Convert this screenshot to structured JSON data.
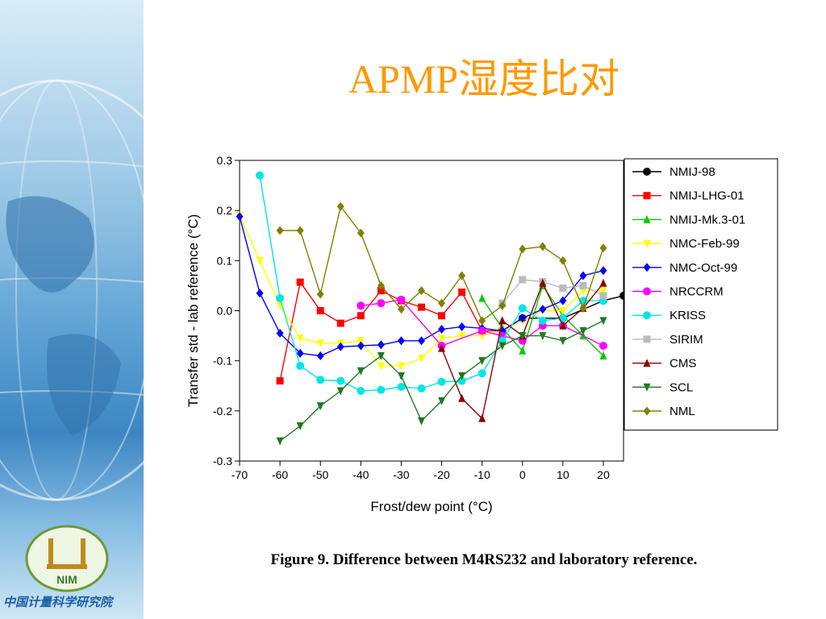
{
  "slide": {
    "title": "APMP湿度比对",
    "caption": "Figure 9. Difference between M4RS232 and laboratory reference.",
    "logo_text": "NIM",
    "institute": "中国计量科学研究院"
  },
  "chart_data": {
    "type": "line",
    "xlabel": "Frost/dew point (°C)",
    "ylabel": "Transfer std - lab reference (°C)",
    "xlim": [
      -70,
      25
    ],
    "ylim": [
      -0.3,
      0.3
    ],
    "xticks": [
      -70,
      -60,
      -50,
      -40,
      -30,
      -20,
      -10,
      0,
      10,
      20
    ],
    "yticks": [
      -0.3,
      -0.2,
      -0.1,
      0.0,
      0.1,
      0.2,
      0.3
    ],
    "xtick_labels": [
      "-70",
      "-60",
      "-50",
      "-40",
      "-30",
      "-20",
      "-10",
      "0",
      "10",
      "20"
    ],
    "ytick_labels": [
      "-0.3",
      "-0.2",
      "-0.1",
      "0.0",
      "0.1",
      "0.2",
      "0.3"
    ],
    "legend_position": "right",
    "grid": false,
    "series": [
      {
        "name": "NMIJ-98",
        "color": "#000000",
        "marker": "circle",
        "x": [
          -5,
          0,
          10,
          20,
          25
        ],
        "y": [
          -0.04,
          -0.015,
          -0.015,
          0.02,
          0.03
        ]
      },
      {
        "name": "NMIJ-LHG-01",
        "color": "#ff0000",
        "marker": "square",
        "x": [
          -60,
          -55,
          -50,
          -45,
          -40,
          -35,
          -30,
          -25,
          -20,
          -15,
          -10,
          -5
        ],
        "y": [
          -0.14,
          0.057,
          0.0,
          -0.025,
          -0.01,
          0.04,
          0.02,
          0.007,
          -0.01,
          0.037,
          -0.04,
          -0.04
        ]
      },
      {
        "name": "NMIJ-Mk.3-01",
        "color": "#00cc00",
        "marker": "triangle-up",
        "x": [
          -10,
          -5,
          0,
          5,
          10,
          15,
          20
        ],
        "y": [
          0.025,
          -0.035,
          -0.08,
          0.05,
          -0.01,
          -0.05,
          -0.09
        ]
      },
      {
        "name": "NMC-Feb-99",
        "color": "#ffff00",
        "marker": "triangle-down",
        "x": [
          -70,
          -65,
          -60,
          -55,
          -50,
          -45,
          -40,
          -35,
          -30,
          -25,
          -20,
          -15,
          -10,
          -5,
          0,
          5,
          10,
          15,
          20
        ],
        "y": [
          0.19,
          0.1,
          0.01,
          -0.055,
          -0.065,
          -0.065,
          -0.06,
          -0.11,
          -0.11,
          -0.095,
          -0.055,
          -0.05,
          -0.05,
          -0.04,
          -0.02,
          0.0,
          0.0,
          0.04,
          0.04
        ]
      },
      {
        "name": "NMC-Oct-99",
        "color": "#0000ff",
        "marker": "diamond",
        "x": [
          -70,
          -65,
          -60,
          -55,
          -50,
          -45,
          -40,
          -35,
          -30,
          -25,
          -20,
          -15,
          -10,
          -5,
          0,
          5,
          10,
          15,
          20
        ],
        "y": [
          0.188,
          0.035,
          -0.045,
          -0.085,
          -0.09,
          -0.072,
          -0.07,
          -0.068,
          -0.06,
          -0.06,
          -0.037,
          -0.032,
          -0.035,
          -0.04,
          -0.015,
          0.003,
          0.02,
          0.07,
          0.08
        ]
      },
      {
        "name": "NRCCRM",
        "color": "#ff00ff",
        "marker": "circle",
        "x": [
          -40,
          -35,
          -30,
          -20,
          -10,
          -5,
          0,
          5,
          10,
          20
        ],
        "y": [
          0.01,
          0.015,
          0.022,
          -0.07,
          -0.04,
          -0.05,
          -0.06,
          -0.03,
          -0.03,
          -0.07
        ]
      },
      {
        "name": "KRISS",
        "color": "#00e5e5",
        "marker": "circle",
        "x": [
          -65,
          -60,
          -55,
          -50,
          -45,
          -40,
          -35,
          -30,
          -25,
          -20,
          -15,
          -10,
          -5,
          0,
          5,
          10,
          15,
          20
        ],
        "y": [
          0.27,
          0.025,
          -0.11,
          -0.138,
          -0.14,
          -0.16,
          -0.158,
          -0.152,
          -0.155,
          -0.142,
          -0.14,
          -0.125,
          -0.06,
          0.005,
          -0.02,
          -0.015,
          0.02,
          0.02
        ]
      },
      {
        "name": "SIRIM",
        "color": "#bbbbbb",
        "marker": "square",
        "x": [
          -5,
          0,
          5,
          10,
          15,
          20
        ],
        "y": [
          0.015,
          0.062,
          0.058,
          0.045,
          0.05,
          0.03
        ]
      },
      {
        "name": "CMS",
        "color": "#8b0000",
        "marker": "triangle-up",
        "x": [
          -20,
          -15,
          -10,
          -5,
          0,
          5,
          10,
          15,
          20
        ],
        "y": [
          -0.075,
          -0.175,
          -0.215,
          -0.02,
          -0.05,
          0.055,
          -0.03,
          0.005,
          0.055
        ]
      },
      {
        "name": "SCL",
        "color": "#1e7a1e",
        "marker": "triangle-down",
        "x": [
          -60,
          -55,
          -50,
          -45,
          -40,
          -35,
          -30,
          -25,
          -20,
          -15,
          -10,
          -5,
          0,
          5,
          10,
          15,
          20
        ],
        "y": [
          -0.26,
          -0.23,
          -0.19,
          -0.16,
          -0.12,
          -0.09,
          -0.13,
          -0.22,
          -0.18,
          -0.13,
          -0.1,
          -0.07,
          -0.05,
          -0.05,
          -0.06,
          -0.04,
          -0.02
        ]
      },
      {
        "name": "NML",
        "color": "#808000",
        "marker": "diamond",
        "x": [
          -60,
          -55,
          -50,
          -45,
          -40,
          -35,
          -30,
          -25,
          -20,
          -15,
          -10,
          -5,
          0,
          5,
          10,
          15,
          20
        ],
        "y": [
          0.16,
          0.16,
          0.033,
          0.208,
          0.155,
          0.05,
          0.003,
          0.04,
          0.015,
          0.07,
          -0.02,
          0.01,
          0.123,
          0.128,
          0.1,
          0.005,
          0.125
        ]
      }
    ]
  }
}
